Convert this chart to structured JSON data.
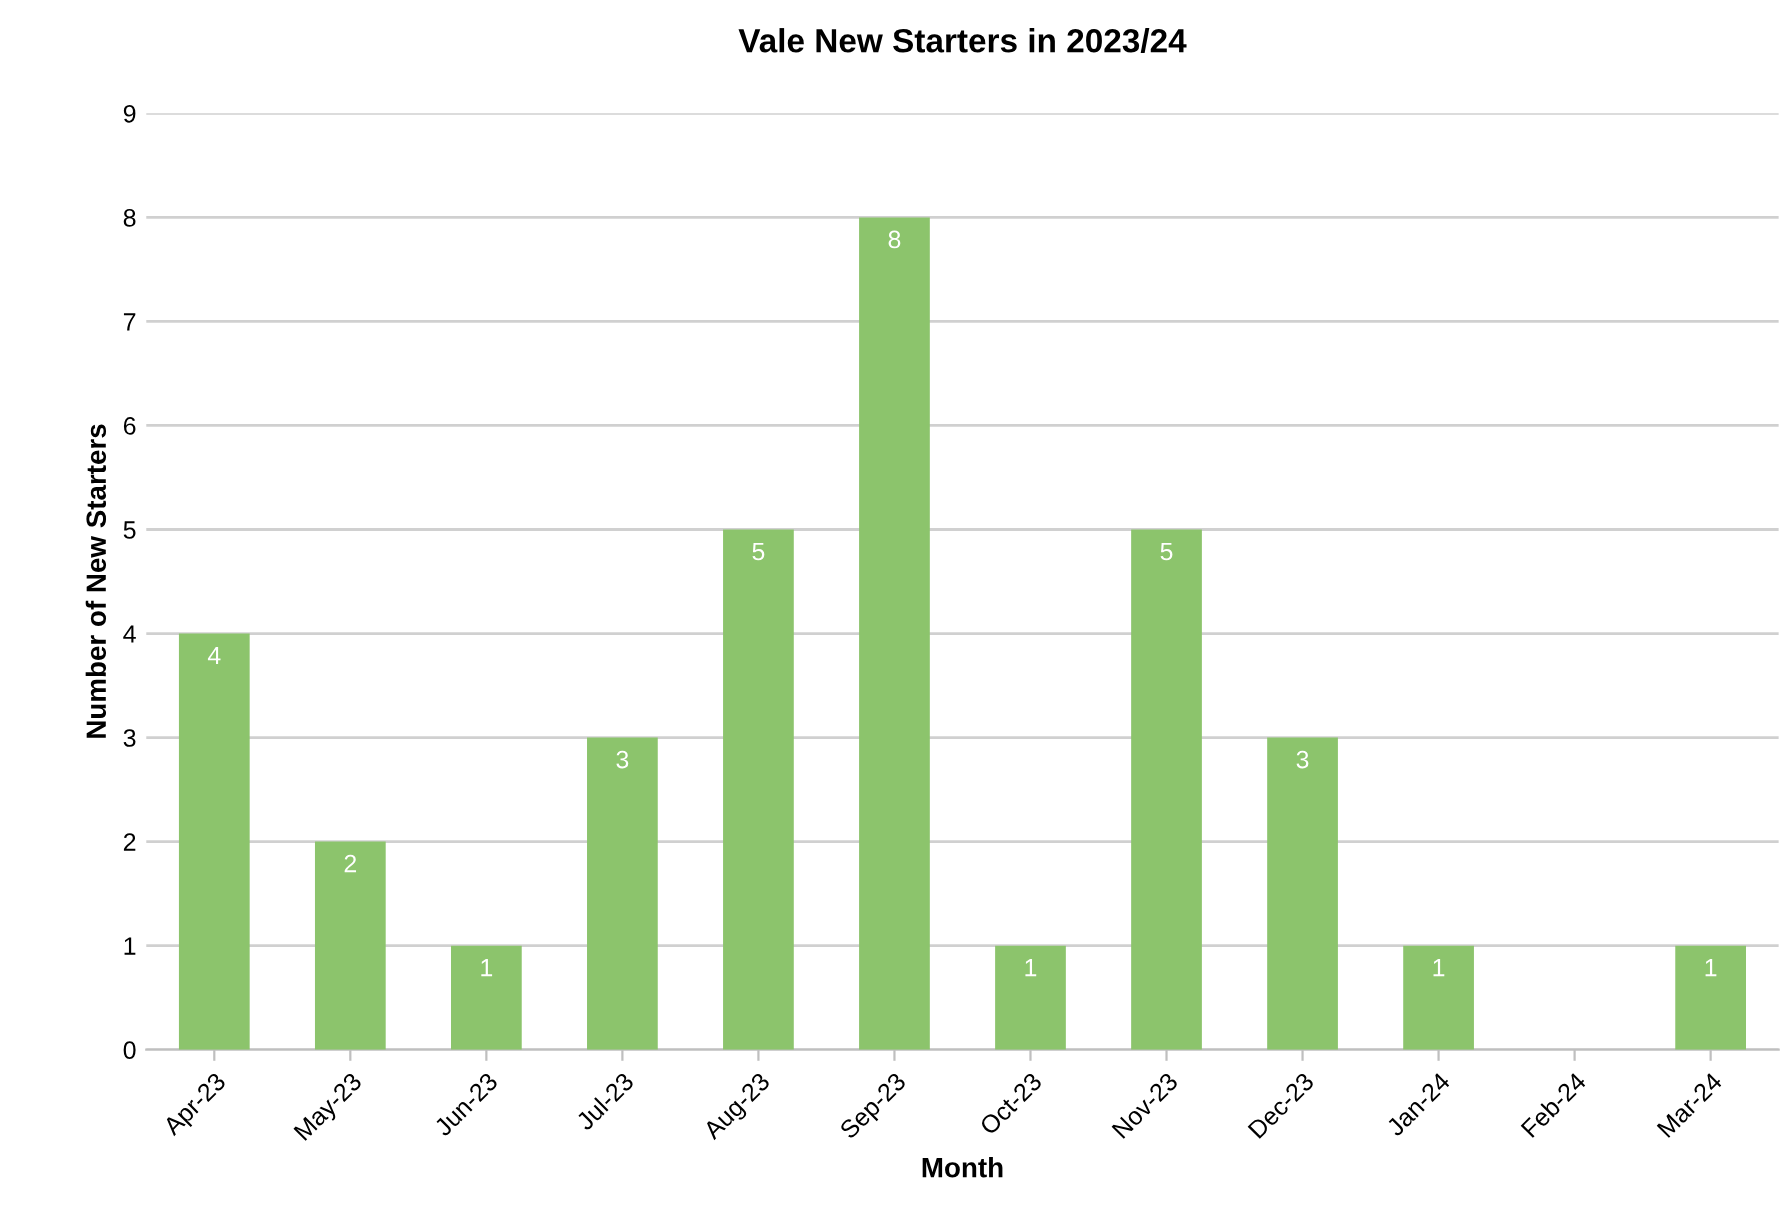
{
  "chart_data": {
    "type": "bar",
    "title": "Vale New Starters in 2023/24",
    "xlabel": "Month",
    "ylabel": "Number of New Starters",
    "categories": [
      "Apr-23",
      "May-23",
      "Jun-23",
      "Jul-23",
      "Aug-23",
      "Sep-23",
      "Oct-23",
      "Nov-23",
      "Dec-23",
      "Jan-24",
      "Feb-24",
      "Mar-24"
    ],
    "values": [
      4,
      2,
      1,
      3,
      5,
      8,
      1,
      5,
      3,
      1,
      0,
      1
    ],
    "value_labels": [
      "4",
      "2",
      "1",
      "3",
      "5",
      "8",
      "1",
      "5",
      "3",
      "1",
      null,
      "1"
    ],
    "color": "#8cc46c",
    "ylim": [
      0,
      9
    ],
    "yticks": [
      0,
      1,
      2,
      3,
      4,
      5,
      6,
      7,
      8,
      9
    ],
    "grid": "y"
  }
}
